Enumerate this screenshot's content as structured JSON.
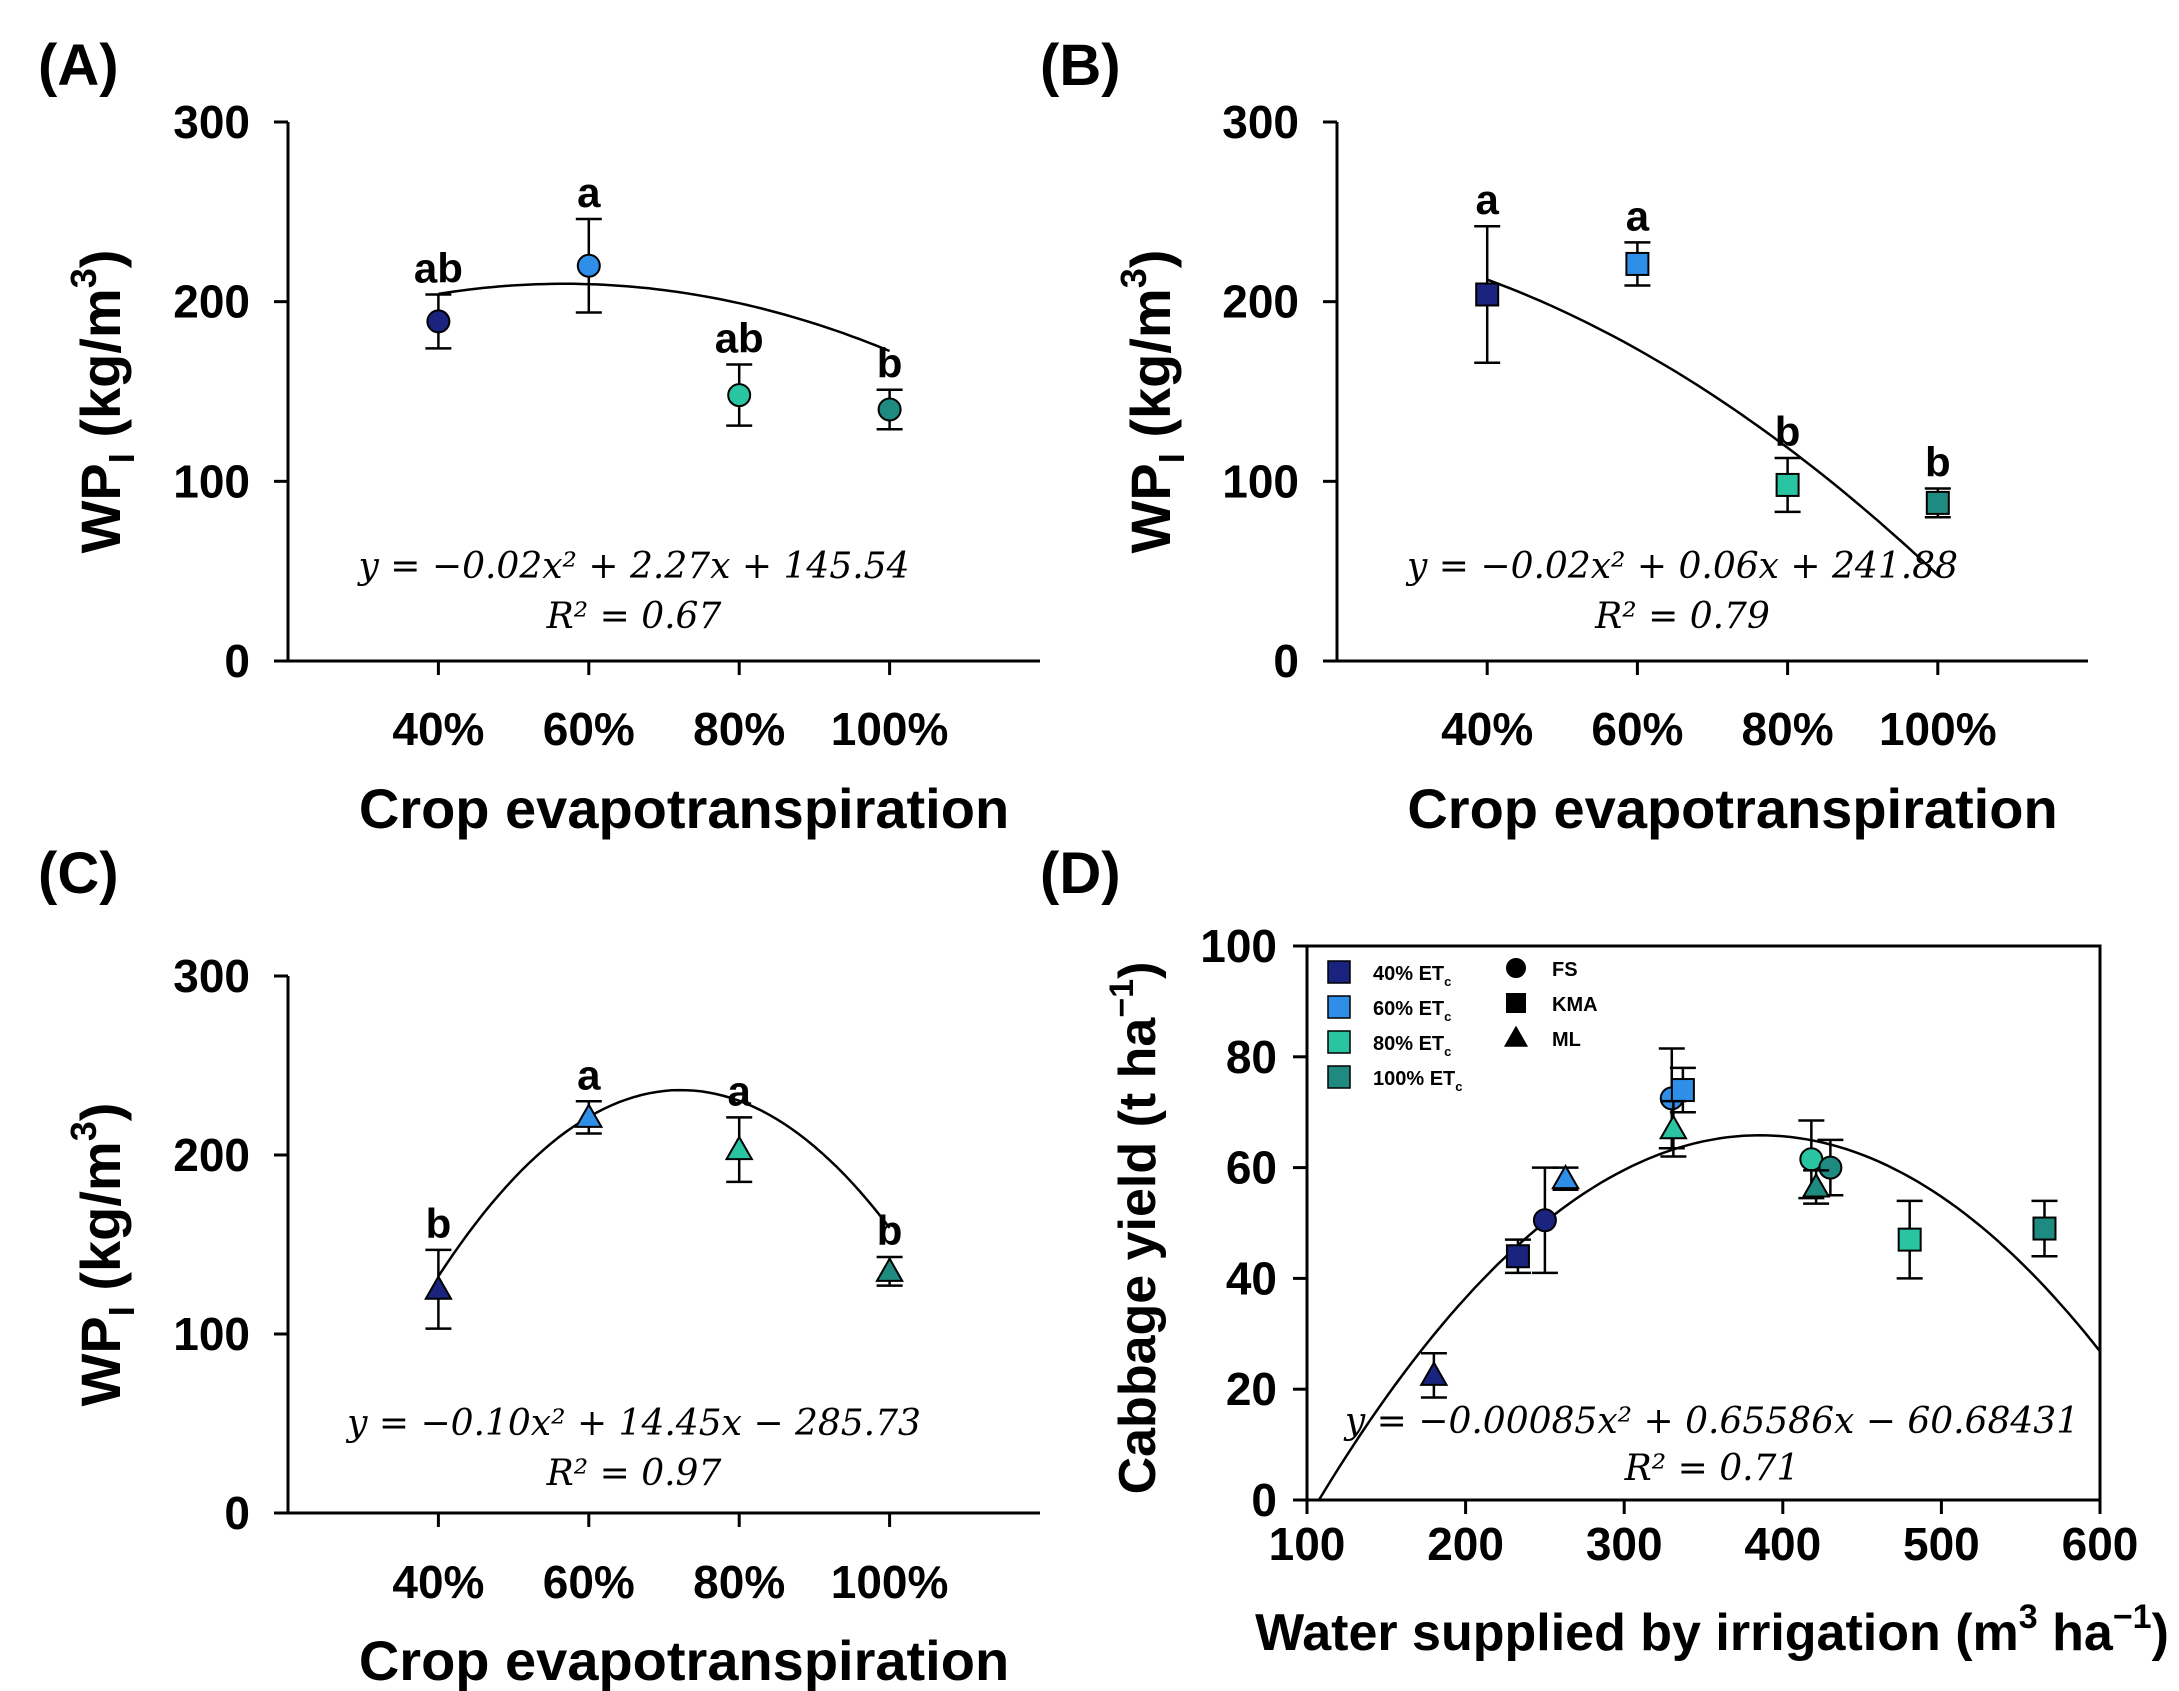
{
  "chart_data": [
    {
      "panel": "(A)",
      "type": "scatter",
      "categories": [
        "40%",
        "60%",
        "80%",
        "100%"
      ],
      "x": [
        40,
        60,
        80,
        100
      ],
      "values": [
        189,
        220,
        148,
        140
      ],
      "errors": [
        15,
        26,
        17,
        11
      ],
      "letters": [
        "ab",
        "a",
        "ab",
        "b"
      ],
      "colors": [
        "#1a237e",
        "#2f8fe8",
        "#29c4a2",
        "#1f8a80"
      ],
      "marker": "circle",
      "fit": {
        "a": -0.02,
        "b": 2.27,
        "c": 145.54
      },
      "fit_range": [
        40,
        100
      ],
      "equation": "y = −0.02x² + 2.27x + 145.54",
      "r2": "R² = 0.67",
      "xlabel": "Crop evapotranspiration",
      "ylabel": "WP",
      "ylabel_sub": "I",
      "ylabel_unit": " (kg/m",
      "ylabel_sup": "3",
      "ylabel_close": ")",
      "yticks": [
        "0",
        "100",
        "200",
        "300"
      ],
      "ylim": [
        0,
        300
      ],
      "xlim": [
        20,
        120
      ]
    },
    {
      "panel": "(B)",
      "type": "scatter",
      "categories": [
        "40%",
        "60%",
        "80%",
        "100%"
      ],
      "x": [
        40,
        60,
        80,
        100
      ],
      "values": [
        204,
        221,
        98,
        88
      ],
      "errors": [
        38,
        12,
        15,
        8
      ],
      "letters": [
        "a",
        "a",
        "b",
        "b"
      ],
      "colors": [
        "#1a237e",
        "#2f8fe8",
        "#29c4a2",
        "#1f8a80"
      ],
      "marker": "square",
      "fit": {
        "a": -0.02,
        "b": 0.06,
        "c": 241.88
      },
      "fit_range": [
        40,
        100
      ],
      "equation": "y = −0.02x² + 0.06x + 241.88",
      "r2": "R² = 0.79",
      "xlabel": "Crop evapotranspiration",
      "ylabel": "WP",
      "ylabel_sub": "I",
      "ylabel_unit": " (kg/m",
      "ylabel_sup": "3",
      "ylabel_close": ")",
      "yticks": [
        "0",
        "100",
        "200",
        "300"
      ],
      "ylim": [
        0,
        300
      ],
      "xlim": [
        20,
        120
      ]
    },
    {
      "panel": "(C)",
      "type": "scatter",
      "categories": [
        "40%",
        "60%",
        "80%",
        "100%"
      ],
      "x": [
        40,
        60,
        80,
        100
      ],
      "values": [
        125,
        221,
        203,
        135
      ],
      "errors": [
        22,
        9,
        18,
        8
      ],
      "letters": [
        "b",
        "a",
        "a",
        "b"
      ],
      "colors": [
        "#1a237e",
        "#2f8fe8",
        "#29c4a2",
        "#1f8a80"
      ],
      "marker": "triangle",
      "fit": {
        "a": -0.1,
        "b": 14.45,
        "c": -285.73
      },
      "fit_range": [
        40,
        100
      ],
      "equation": "y = −0.10x² + 14.45x − 285.73",
      "r2": "R² = 0.97",
      "xlabel": "Crop evapotranspiration",
      "ylabel": "WP",
      "ylabel_sub": "I",
      "ylabel_unit": " (kg/m",
      "ylabel_sup": "3",
      "ylabel_close": ")",
      "yticks": [
        "0",
        "100",
        "200",
        "300"
      ],
      "ylim": [
        0,
        300
      ],
      "xlim": [
        20,
        120
      ]
    },
    {
      "panel": "(D)",
      "type": "scatter",
      "points": [
        {
          "x": 250,
          "y": 50.5,
          "err": 9.5,
          "marker": "circle",
          "color": "#1a237e"
        },
        {
          "x": 233,
          "y": 44,
          "err": 3,
          "marker": "square",
          "color": "#1a237e"
        },
        {
          "x": 180,
          "y": 22.5,
          "err": 4,
          "marker": "triangle",
          "color": "#1a237e"
        },
        {
          "x": 330,
          "y": 72.5,
          "err": 9,
          "marker": "circle",
          "color": "#2f8fe8"
        },
        {
          "x": 337,
          "y": 74,
          "err": 4,
          "marker": "square",
          "color": "#2f8fe8"
        },
        {
          "x": 263,
          "y": 58,
          "err": 2,
          "marker": "triangle",
          "color": "#2f8fe8"
        },
        {
          "x": 418,
          "y": 61.5,
          "err": 7,
          "marker": "circle",
          "color": "#29c4a2"
        },
        {
          "x": 480,
          "y": 47,
          "err": 7,
          "marker": "square",
          "color": "#29c4a2"
        },
        {
          "x": 331,
          "y": 67,
          "err": 5,
          "marker": "triangle",
          "color": "#29c4a2"
        },
        {
          "x": 430,
          "y": 60,
          "err": 5,
          "marker": "circle",
          "color": "#1f8a80"
        },
        {
          "x": 565,
          "y": 49,
          "err": 5,
          "marker": "square",
          "color": "#1f8a80"
        },
        {
          "x": 421,
          "y": 56.5,
          "err": 3,
          "marker": "triangle",
          "color": "#1f8a80"
        }
      ],
      "fit": {
        "a": -0.00085,
        "b": 0.65586,
        "c": -60.68431
      },
      "fit_range": [
        100,
        600
      ],
      "equation": "y = −0.00085x² + 0.65586x − 60.68431",
      "r2": "R² = 0.71",
      "xlabel": "Water supplied by irrigation (m",
      "xlabel_sup1": "3",
      "xlabel_mid": " ha",
      "xlabel_sup2": "−1",
      "xlabel_close": ")",
      "ylabel": "Cabbage yield (t ha",
      "ylabel_sup": "−1",
      "ylabel_close": ")",
      "xticks": [
        "100",
        "200",
        "300",
        "400",
        "500",
        "600"
      ],
      "yticks": [
        "0",
        "20",
        "40",
        "60",
        "80",
        "100"
      ],
      "xlim": [
        100,
        600
      ],
      "ylim": [
        0,
        100
      ],
      "legend_colors": [
        {
          "label": "40% ET",
          "sub": "c",
          "color": "#1a237e"
        },
        {
          "label": "60% ET",
          "sub": "c",
          "color": "#2f8fe8"
        },
        {
          "label": "80% ET",
          "sub": "c",
          "color": "#29c4a2"
        },
        {
          "label": "100% ET",
          "sub": "c",
          "color": "#1f8a80"
        }
      ],
      "legend_markers": [
        {
          "label": "FS",
          "marker": "circle"
        },
        {
          "label": "KMA",
          "marker": "square"
        },
        {
          "label": "ML",
          "marker": "triangle"
        }
      ]
    }
  ]
}
